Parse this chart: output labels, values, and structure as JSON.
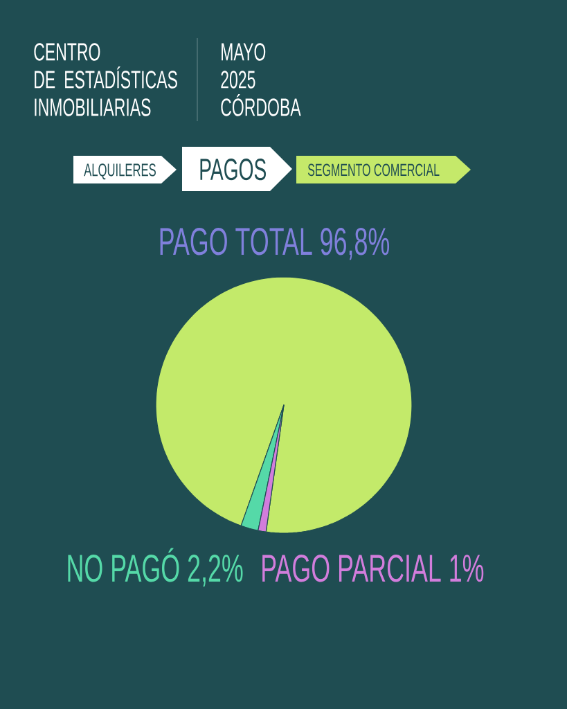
{
  "chart_data": {
    "type": "pie",
    "title": "CENTRO DE ESTADÍSTICAS INMOBILIARIAS",
    "subtitle": "MAYO 2025 CÓRDOBA",
    "annotations": [
      "ALQUILERES",
      "PAGOS",
      "SEGMENTO COMERCIAL"
    ],
    "categories": [
      "PAGO TOTAL",
      "NO PAGÓ",
      "PAGO PARCIAL"
    ],
    "values": [
      96.8,
      2.2,
      1
    ],
    "value_labels": [
      "96,8%",
      "2,2%",
      "1%"
    ],
    "colors": [
      "#c3ea6a",
      "#55d9a8",
      "#d27ddc"
    ]
  }
}
